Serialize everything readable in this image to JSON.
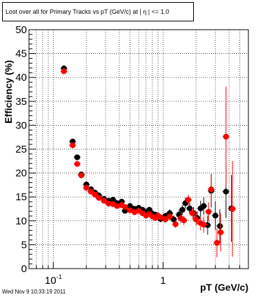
{
  "footer": {
    "timestamp": "Wed Nov  9 10:33:19 2011"
  },
  "colors": {
    "series_black": "#000000",
    "series_red": "#ff0000",
    "grid": "#000000"
  },
  "chart_data": {
    "type": "scatter",
    "title": "Lost over all for Primary Tracks vs pT (GeV/c) at |  η | <= 1.0",
    "xlabel": "pT (GeV/c)",
    "ylabel": "Efficiency (%)",
    "xscale": "log",
    "xlim": [
      0.06,
      6
    ],
    "ylim": [
      0,
      50
    ],
    "x_ticks": [
      {
        "value": 0.1,
        "label": "10",
        "sup": "-1"
      },
      {
        "value": 1,
        "label": "1",
        "sup": ""
      }
    ],
    "y_ticks": [
      0,
      5,
      10,
      15,
      20,
      25,
      30,
      35,
      40,
      45,
      50
    ],
    "grid": true,
    "series": [
      {
        "color": "#000000",
        "points": [
          {
            "x": 0.125,
            "y": 41.9,
            "err": 0.5
          },
          {
            "x": 0.15,
            "y": 26.6,
            "err": 0.5
          },
          {
            "x": 0.165,
            "y": 23.3,
            "err": 0.5
          },
          {
            "x": 0.18,
            "y": 19.7,
            "err": 0.4
          },
          {
            "x": 0.2,
            "y": 17.6,
            "err": 0.4
          },
          {
            "x": 0.22,
            "y": 16.6,
            "err": 0.4
          },
          {
            "x": 0.24,
            "y": 15.9,
            "err": 0.4
          },
          {
            "x": 0.26,
            "y": 15.3,
            "err": 0.4
          },
          {
            "x": 0.29,
            "y": 14.6,
            "err": 0.4
          },
          {
            "x": 0.32,
            "y": 14.2,
            "err": 0.4
          },
          {
            "x": 0.35,
            "y": 14.4,
            "err": 0.4
          },
          {
            "x": 0.38,
            "y": 13.7,
            "err": 0.4
          },
          {
            "x": 0.42,
            "y": 14.0,
            "err": 0.4
          },
          {
            "x": 0.45,
            "y": 12.1,
            "err": 0.4
          },
          {
            "x": 0.5,
            "y": 13.1,
            "err": 0.5
          },
          {
            "x": 0.55,
            "y": 12.5,
            "err": 0.5
          },
          {
            "x": 0.6,
            "y": 12.7,
            "err": 0.5
          },
          {
            "x": 0.65,
            "y": 12.3,
            "err": 0.5
          },
          {
            "x": 0.7,
            "y": 11.9,
            "err": 0.5
          },
          {
            "x": 0.75,
            "y": 12.3,
            "err": 0.5
          },
          {
            "x": 0.8,
            "y": 11.5,
            "err": 0.6
          },
          {
            "x": 0.85,
            "y": 11.3,
            "err": 0.6
          },
          {
            "x": 0.9,
            "y": 10.9,
            "err": 0.6
          },
          {
            "x": 0.95,
            "y": 10.4,
            "err": 0.7
          },
          {
            "x": 1.05,
            "y": 11.0,
            "err": 0.7
          },
          {
            "x": 1.15,
            "y": 11.6,
            "err": 0.8
          },
          {
            "x": 1.25,
            "y": 10.3,
            "err": 0.8
          },
          {
            "x": 1.4,
            "y": 11.3,
            "err": 0.9
          },
          {
            "x": 1.5,
            "y": 12.3,
            "err": 1.0
          },
          {
            "x": 1.6,
            "y": 13.7,
            "err": 1.1
          },
          {
            "x": 1.75,
            "y": 12.6,
            "err": 1.2
          },
          {
            "x": 1.9,
            "y": 11.6,
            "err": 1.3
          },
          {
            "x": 2.05,
            "y": 10.6,
            "err": 1.4
          },
          {
            "x": 2.2,
            "y": 12.6,
            "err": 1.6
          },
          {
            "x": 2.35,
            "y": 13.1,
            "err": 1.8
          },
          {
            "x": 2.55,
            "y": 9.1,
            "err": 2.0
          },
          {
            "x": 2.75,
            "y": 16.3,
            "err": 3.5
          },
          {
            "x": 3.0,
            "y": 11.1,
            "err": 3.0
          },
          {
            "x": 3.3,
            "y": 8.9,
            "err": 3.5
          },
          {
            "x": 3.75,
            "y": 16.1,
            "err": 5.5
          },
          {
            "x": 4.2,
            "y": 12.6,
            "err": 7.0
          }
        ]
      },
      {
        "color": "#ff0000",
        "points": [
          {
            "x": 0.125,
            "y": 41.3,
            "err": 0.5
          },
          {
            "x": 0.15,
            "y": 25.8,
            "err": 0.5
          },
          {
            "x": 0.165,
            "y": 21.9,
            "err": 0.5
          },
          {
            "x": 0.18,
            "y": 19.5,
            "err": 0.4
          },
          {
            "x": 0.2,
            "y": 16.9,
            "err": 0.4
          },
          {
            "x": 0.22,
            "y": 16.1,
            "err": 0.4
          },
          {
            "x": 0.24,
            "y": 15.5,
            "err": 0.4
          },
          {
            "x": 0.26,
            "y": 14.8,
            "err": 0.4
          },
          {
            "x": 0.29,
            "y": 14.2,
            "err": 0.4
          },
          {
            "x": 0.32,
            "y": 13.6,
            "err": 0.4
          },
          {
            "x": 0.35,
            "y": 13.5,
            "err": 0.4
          },
          {
            "x": 0.38,
            "y": 13.1,
            "err": 0.4
          },
          {
            "x": 0.42,
            "y": 13.3,
            "err": 0.4
          },
          {
            "x": 0.45,
            "y": 12.9,
            "err": 0.4
          },
          {
            "x": 0.5,
            "y": 12.2,
            "err": 0.5
          },
          {
            "x": 0.55,
            "y": 11.8,
            "err": 0.5
          },
          {
            "x": 0.6,
            "y": 12.1,
            "err": 0.5
          },
          {
            "x": 0.65,
            "y": 11.6,
            "err": 0.5
          },
          {
            "x": 0.7,
            "y": 11.1,
            "err": 0.5
          },
          {
            "x": 0.75,
            "y": 11.4,
            "err": 0.5
          },
          {
            "x": 0.8,
            "y": 10.9,
            "err": 0.6
          },
          {
            "x": 0.85,
            "y": 10.6,
            "err": 0.6
          },
          {
            "x": 0.9,
            "y": 11.1,
            "err": 0.6
          },
          {
            "x": 0.95,
            "y": 10.7,
            "err": 0.7
          },
          {
            "x": 1.05,
            "y": 10.3,
            "err": 0.7
          },
          {
            "x": 1.15,
            "y": 10.9,
            "err": 0.8
          },
          {
            "x": 1.3,
            "y": 9.3,
            "err": 0.8
          },
          {
            "x": 1.45,
            "y": 10.5,
            "err": 0.9
          },
          {
            "x": 1.55,
            "y": 10.1,
            "err": 1.0
          },
          {
            "x": 1.7,
            "y": 14.4,
            "err": 1.1
          },
          {
            "x": 1.85,
            "y": 11.6,
            "err": 1.2
          },
          {
            "x": 2.0,
            "y": 10.3,
            "err": 1.3
          },
          {
            "x": 2.2,
            "y": 9.5,
            "err": 1.5
          },
          {
            "x": 2.35,
            "y": 9.2,
            "err": 1.7
          },
          {
            "x": 2.6,
            "y": 11.9,
            "err": 2.0
          },
          {
            "x": 2.75,
            "y": 16.6,
            "err": 3.0
          },
          {
            "x": 3.1,
            "y": 5.4,
            "err": 3.0
          },
          {
            "x": 3.35,
            "y": 7.6,
            "err": 4.0
          },
          {
            "x": 3.75,
            "y": 27.6,
            "err": 10.5
          },
          {
            "x": 4.3,
            "y": 12.5,
            "err": 10.0
          }
        ]
      }
    ]
  }
}
